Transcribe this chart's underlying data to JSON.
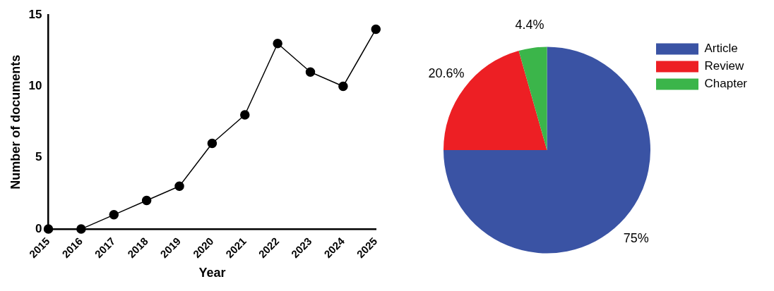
{
  "chart_data": [
    {
      "type": "line",
      "xlabel": "Year",
      "ylabel": "Number of documents",
      "categories": [
        "2015",
        "2016",
        "2017",
        "2018",
        "2019",
        "2020",
        "2021",
        "2022",
        "2023",
        "2024",
        "2025"
      ],
      "values": [
        0,
        0,
        1,
        2,
        3,
        6,
        8,
        13,
        11,
        10,
        14
      ],
      "color": "#000000",
      "marker": "circle",
      "line_style": "solid",
      "ylim": [
        0,
        15
      ],
      "yticks": [
        0,
        5,
        10,
        15
      ],
      "grid": false,
      "legend": false
    },
    {
      "type": "pie",
      "categories": [
        "Article",
        "Review",
        "Chapter"
      ],
      "values": [
        75,
        20.6,
        4.4
      ],
      "colors": [
        "#3a53a4",
        "#ed1f24",
        "#3bb54a"
      ],
      "value_labels": [
        "75%",
        "20.6%",
        "4.4%"
      ],
      "legend": "right"
    }
  ]
}
